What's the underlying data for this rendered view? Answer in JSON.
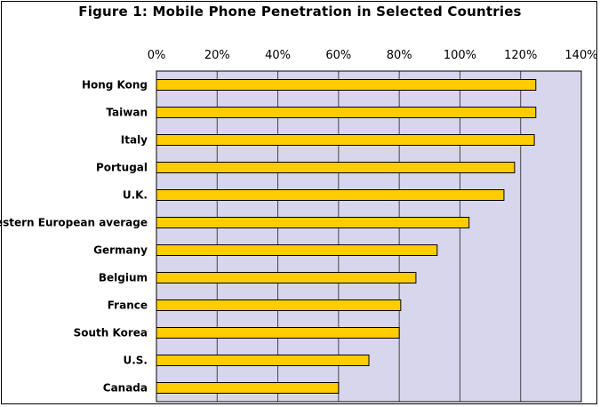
{
  "chart_data": {
    "type": "bar",
    "orientation": "horizontal",
    "title": "Figure 1: Mobile Phone Penetration in Selected Countries",
    "xlabel": "",
    "ylabel": "",
    "categories": [
      "Hong Kong",
      "Taiwan",
      "Italy",
      "Portugal",
      "U.K.",
      "Western European average",
      "Germany",
      "Belgium",
      "France",
      "South Korea",
      "U.S.",
      "Canada"
    ],
    "values": [
      125,
      125,
      124.5,
      118,
      114.5,
      103,
      92.5,
      85.5,
      80.5,
      80,
      70,
      60
    ],
    "xlim": [
      0,
      140
    ],
    "ticks": [
      "0%",
      "20%",
      "40%",
      "60%",
      "80%",
      "100%",
      "120%",
      "140%"
    ],
    "tick_values": [
      0,
      20,
      40,
      60,
      80,
      100,
      120,
      140
    ],
    "axis_position": "top",
    "grid": true,
    "colors": {
      "plot_background": "#d8d6ec",
      "bar_fill": "#ffcc00",
      "bar_stroke": "#000000",
      "grid": "#444444"
    }
  }
}
